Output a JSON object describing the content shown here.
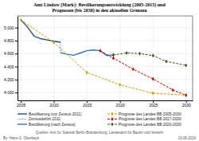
{
  "chart_data": {
    "type": "line",
    "title": "Amt Lindow (Mark): Bevölkerungsentwicklung (2005-2015) und\nPrognosen (bis 2030) in den aktuellen Grenzen",
    "annotations": [
      "By: Hans G. Oberbeck",
      "Quellen: Amt für Statistik Berlin-Brandenburg, Landesamt für Bauen und Verkehr",
      "19.08.2019"
    ],
    "xlim": [
      2004.5,
      2031
    ],
    "ylim": [
      3880,
      5180
    ],
    "xticks": [
      2005,
      2010,
      2015,
      2020,
      2025,
      2030
    ],
    "yticks": [
      {
        "value": 4000,
        "label": "4.000"
      },
      {
        "value": 4200,
        "label": "4.200"
      },
      {
        "value": 4400,
        "label": "4.400"
      },
      {
        "value": 4600,
        "label": "4.600"
      },
      {
        "value": 4800,
        "label": "4.800"
      },
      {
        "value": 5000,
        "label": "5.000"
      }
    ],
    "grid": true,
    "legend": "bottom",
    "series": [
      {
        "name": "Bevölkerung (vor Zensus 2011)",
        "color": "#1F4E79",
        "line_style": "solid",
        "x": [
          2005,
          2006,
          2007,
          2008,
          2009,
          2010,
          2011
        ],
        "values": [
          5120,
          5010,
          4870,
          4830,
          4810,
          4790,
          4775
        ]
      },
      {
        "name": "Zensusdefizit 2011",
        "color": "#2E75B6",
        "line_style": "dotted",
        "x": [
          2011,
          2011
        ],
        "values": [
          4775,
          4615
        ]
      },
      {
        "name": "Bevölkerung (nach Zensus)",
        "color": "#2E75B6",
        "line_style": "solid",
        "x": [
          2011,
          2012,
          2013,
          2014,
          2015,
          2016,
          2017,
          2018,
          2019
        ],
        "values": [
          4615,
          4590,
          4575,
          4610,
          4645,
          4655,
          4645,
          4570,
          4580
        ]
      },
      {
        "name": "Prognose des Landes BB 2005-2030",
        "color": "#C8A000",
        "line_style": "dashed",
        "marker": "diamond",
        "x": [
          2005,
          2010,
          2015,
          2020,
          2025,
          2030
        ],
        "values": [
          5120,
          4770,
          4310,
          4120,
          3990,
          3960
        ]
      },
      {
        "name": "Prognose des Landes BB 2017-2030",
        "color": "#C00000",
        "line_style": "dashed",
        "marker": "diamond",
        "x": [
          2017,
          2019,
          2022,
          2025,
          2028,
          2030
        ],
        "values": [
          4645,
          4530,
          4360,
          4210,
          4040,
          3960
        ]
      },
      {
        "name": "Prognose des Landes BB 2020-2030",
        "color": "#375623",
        "line_style": "dashed",
        "marker": "diamond",
        "x": [
          2019,
          2021,
          2023,
          2025,
          2027,
          2030
        ],
        "values": [
          4580,
          4610,
          4600,
          4570,
          4480,
          4420
        ]
      }
    ]
  }
}
